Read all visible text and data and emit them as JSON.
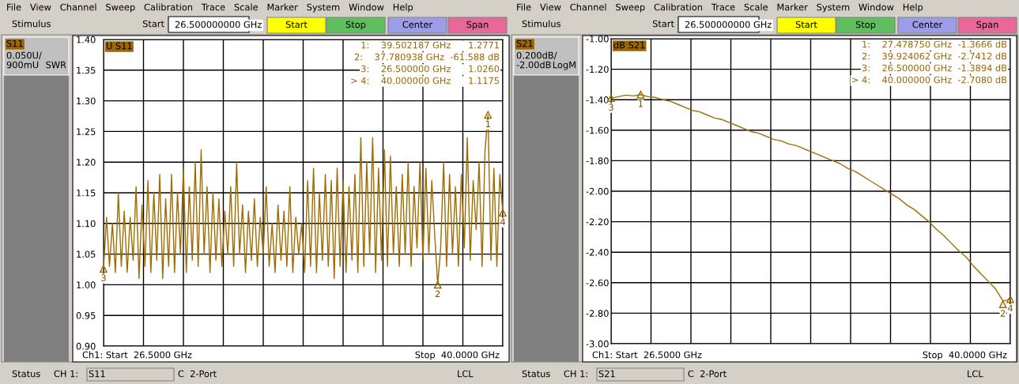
{
  "chart_data": [
    {
      "type": "line",
      "grid": true,
      "tick_labels": "y",
      "marker": "none",
      "line_style": "solid",
      "categories": [
        null,
        null,
        null,
        null,
        null,
        null,
        null,
        null,
        null,
        null,
        null,
        null,
        null,
        null,
        null,
        null,
        null,
        null,
        null,
        null,
        null,
        null,
        null,
        null,
        null,
        null,
        null,
        null,
        null,
        null,
        null,
        null,
        null,
        null,
        null,
        null,
        null,
        null,
        null,
        null,
        null,
        null,
        null,
        null,
        null,
        null,
        null,
        null,
        null,
        null,
        null,
        null,
        null,
        null,
        null,
        null,
        null,
        null,
        null,
        null,
        null,
        null,
        null,
        null,
        null,
        null,
        null,
        null,
        null,
        null,
        null,
        null,
        null,
        null,
        null,
        null,
        null,
        null,
        null,
        null,
        null,
        null,
        null,
        null,
        null,
        null,
        null,
        null,
        null,
        null,
        null,
        null,
        null,
        null,
        null,
        null,
        null,
        null,
        null,
        null,
        null,
        null,
        null,
        null,
        null,
        null,
        null,
        null,
        null,
        null,
        null,
        null,
        null,
        null,
        null,
        null,
        null,
        null,
        null,
        null,
        null,
        null,
        null,
        null,
        null,
        null,
        null,
        null,
        null,
        null,
        null,
        null,
        null,
        null,
        null,
        null
      ],
      "ylim": [
        0.9,
        1.4
      ],
      "yticks": [
        {
          "value": 0.9,
          "label": "0.90"
        },
        {
          "value": 0.95,
          "label": "0.95"
        },
        {
          "value": 1.0,
          "label": "1.00"
        },
        {
          "value": 1.05,
          "label": "1.05"
        },
        {
          "value": 1.1,
          "label": "1.10"
        },
        {
          "value": 1.15,
          "label": "1.15"
        },
        {
          "value": 1.2,
          "label": "1.20"
        },
        {
          "value": 1.25,
          "label": "1.25"
        },
        {
          "value": 1.3,
          "label": "1.30"
        },
        {
          "value": 1.35,
          "label": "1.35"
        },
        {
          "value": 1.4,
          "label": "1.40"
        }
      ],
      "series": [
        {
          "color": "#a06c00",
          "values": [
            1.026,
            1.11,
            1.03,
            1.1,
            1.02,
            1.15,
            1.03,
            1.12,
            1.02,
            1.11,
            1.04,
            1.16,
            1.01,
            1.13,
            1.03,
            1.17,
            1.02,
            1.15,
            1.04,
            1.18,
            1.01,
            1.14,
            1.03,
            1.18,
            1.02,
            1.15,
            1.05,
            1.19,
            1.02,
            1.16,
            1.04,
            1.2,
            1.03,
            1.22,
            1.05,
            1.16,
            1.02,
            1.15,
            1.04,
            1.14,
            1.03,
            1.12,
            1.05,
            1.16,
            1.03,
            1.2,
            1.05,
            1.13,
            1.02,
            1.12,
            1.04,
            1.14,
            1.03,
            1.11,
            1.05,
            1.16,
            1.03,
            1.1,
            1.02,
            1.13,
            1.04,
            1.12,
            1.03,
            1.16,
            1.02,
            1.11,
            1.05,
            1.1,
            1.02,
            1.17,
            1.03,
            1.19,
            1.02,
            1.15,
            1.04,
            1.18,
            1.03,
            1.17,
            1.01,
            1.19,
            1.03,
            1.17,
            1.02,
            1.16,
            1.04,
            1.18,
            1.02,
            1.24,
            1.03,
            1.2,
            1.05,
            1.24,
            1.02,
            1.19,
            1.04,
            1.22,
            1.03,
            1.21,
            1.05,
            1.16,
            1.03,
            1.18,
            1.05,
            1.2,
            1.03,
            1.16,
            1.06,
            1.2,
            1.04,
            1.19,
            1.05,
            1.17,
            1.08,
            1.0,
            1.06,
            1.2,
            1.03,
            1.18,
            1.05,
            1.16,
            1.03,
            1.18,
            1.06,
            1.24,
            1.04,
            1.17,
            1.09,
            1.2,
            1.03,
            1.22,
            1.277,
            1.04,
            1.19,
            1.03,
            1.18,
            1.1175
          ]
        }
      ],
      "annotations": [
        "File   View   Channel   Sweep   Calibration   Trace   Scale   Marker   System   Window   Help",
        "Stimulus",
        "Start",
        "26.500000000 GHz",
        "Start",
        "Stop",
        "Center",
        "Span",
        "S11",
        "0.050U/",
        "900mU",
        "SWR",
        "U S11",
        "1:    39.502187 GHz      1.2771",
        "2:    37.780938 GHz  -61.588 dB",
        "3:    26.500000 GHz      1.0260",
        "> 4:    40.000000 GHz      1.1175",
        "Ch1: Start  26.5000 GHz",
        "Stop  40.0000 GHz",
        "Status",
        "CH 1:",
        "S11",
        "C  2-Port",
        "LCL",
        {
          "text": "1",
          "y": 1.2771
        },
        {
          "text": "2",
          "y": 1.0
        },
        {
          "text": "3",
          "y": 1.026
        },
        {
          "text": "4",
          "y": 1.1175
        }
      ]
    },
    {
      "type": "line",
      "grid": true,
      "tick_labels": "y",
      "marker": "none",
      "line_style": "solid",
      "categories": [
        null,
        null,
        null,
        null,
        null,
        null,
        null,
        null,
        null,
        null,
        null,
        null,
        null,
        null,
        null,
        null,
        null,
        null,
        null,
        null,
        null,
        null,
        null,
        null,
        null,
        null,
        null,
        null,
        null,
        null,
        null,
        null,
        null,
        null,
        null,
        null,
        null,
        null,
        null,
        null,
        null,
        null,
        null,
        null,
        null,
        null,
        null,
        null,
        null,
        null,
        null,
        null,
        null,
        null,
        null
      ],
      "ylim": [
        -3.0,
        -1.0
      ],
      "yticks": [
        {
          "value": -3.0,
          "label": "-3.00"
        },
        {
          "value": -2.8,
          "label": "-2.80"
        },
        {
          "value": -2.6,
          "label": "-2.60"
        },
        {
          "value": -2.4,
          "label": "-2.40"
        },
        {
          "value": -2.2,
          "label": "-2.20"
        },
        {
          "value": -2.0,
          "label": "-2.00"
        },
        {
          "value": -1.8,
          "label": "-1.80"
        },
        {
          "value": -1.6,
          "label": "-1.60"
        },
        {
          "value": -1.4,
          "label": "-1.40"
        },
        {
          "value": -1.2,
          "label": "-1.20"
        },
        {
          "value": -1.0,
          "label": "-1.00"
        }
      ],
      "series": [
        {
          "color": "#a06c00",
          "values": [
            -1.3894,
            -1.38,
            -1.37,
            -1.375,
            -1.3666,
            -1.38,
            -1.385,
            -1.4,
            -1.41,
            -1.43,
            -1.45,
            -1.47,
            -1.48,
            -1.5,
            -1.52,
            -1.53,
            -1.55,
            -1.57,
            -1.59,
            -1.61,
            -1.62,
            -1.64,
            -1.66,
            -1.67,
            -1.69,
            -1.7,
            -1.72,
            -1.74,
            -1.76,
            -1.78,
            -1.8,
            -1.82,
            -1.85,
            -1.87,
            -1.9,
            -1.93,
            -1.96,
            -1.99,
            -2.02,
            -2.05,
            -2.09,
            -2.12,
            -2.16,
            -2.2,
            -2.25,
            -2.29,
            -2.34,
            -2.39,
            -2.43,
            -2.49,
            -2.54,
            -2.59,
            -2.64,
            -2.72,
            -2.708
          ]
        }
      ],
      "annotations": [
        "File   View   Channel   Sweep   Calibration   Trace   Scale   Marker   System   Window   Help",
        "Stimulus",
        "Start",
        "26.500000000 GHz",
        "Start",
        "Stop",
        "Center",
        "Span",
        "S21",
        "0.200dB/",
        "-2.00dB",
        "LogM",
        "dB S21",
        "1:    27.478750 GHz  -1.3666 dB",
        "2:    39.924062 GHz  -2.7412 dB",
        "3:    26.500000 GHz  -1.3894 dB",
        "> 4:    40.000000 GHz  -2.7080 dB",
        "Ch1: Start  26.5000 GHz",
        "Stop  40.0000 GHz",
        "Status",
        "CH 1:",
        "S21",
        "C  2-Port",
        "LCL",
        {
          "text": "1",
          "y": -1.3666
        },
        {
          "text": "2",
          "y": -2.7412
        },
        {
          "text": "3",
          "y": -1.3894
        },
        {
          "text": "4",
          "y": -2.708
        }
      ]
    }
  ]
}
